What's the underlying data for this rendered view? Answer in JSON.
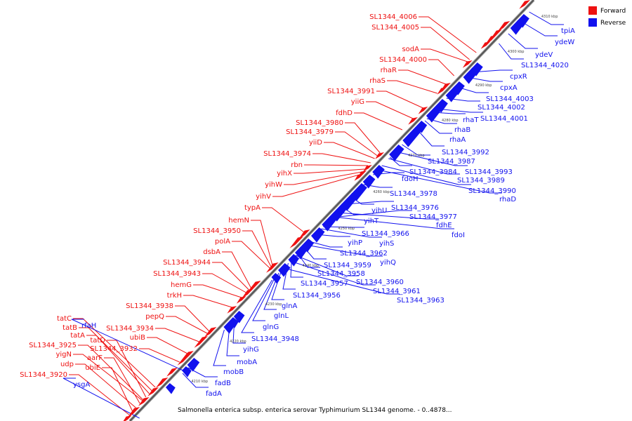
{
  "legend": {
    "forward": {
      "label": "Forward",
      "color": "#ee1111"
    },
    "reverse": {
      "label": "Reverse",
      "color": "#1111ee"
    }
  },
  "caption": "Salmonella enterica subsp. enterica serovar Typhimurium SL1344 genome. - 0..4878...",
  "ticks": [
    "4210 kbp",
    "4220 kbp",
    "4230 kbp",
    "4240 kbp",
    "4250 kbp",
    "4260 kbp",
    "4270 kbp",
    "4280 kbp",
    "4290 kbp",
    "4300 kbp",
    "4310 kbp"
  ],
  "forward_labels": [
    "SL1344_4006",
    "SL1344_4005",
    "sodA",
    "SL1344_4000",
    "rhaR",
    "rhaS",
    "SL1344_3991",
    "yiiG",
    "fdhD",
    "SL1344_3980",
    "SL1344_3979",
    "yiiD",
    "SL1344_3974",
    "rbn",
    "yihX",
    "yihW",
    "yihV",
    "typA",
    "hemN",
    "SL1344_3950",
    "polA",
    "dsbA",
    "SL1344_3944",
    "SL1344_3943",
    "hemG",
    "trkH",
    "SL1344_3938",
    "pepQ",
    "SL1344_3934",
    "ubiB",
    "tatC",
    "tatB",
    "tatA",
    "tatD",
    "SL1344_3925",
    "SL1344_3932",
    "yigN",
    "aarF",
    "udp",
    "ubiE",
    "SL1344_3920"
  ],
  "reverse_labels": [
    "tpiA",
    "ydeW",
    "ydeV",
    "SL1344_4020",
    "cpxR",
    "cpxA",
    "SL1344_4003",
    "SL1344_4002",
    "SL1344_4001",
    "rhaT",
    "rhaB",
    "rhaA",
    "SL1344_3992",
    "SL1344_3987",
    "SL1344_3984",
    "SL1344_3993",
    "SL1344_3989",
    "SL1344_3990",
    "rhaD",
    "fdoH",
    "SL1344_3978",
    "yihU",
    "SL1344_3976",
    "SL1344_3977",
    "fdhE",
    "fdoI",
    "yihT",
    "SL1344_3966",
    "yihS",
    "yihP",
    "SL1344_3962",
    "yihQ",
    "SL1344_3959",
    "SL1344_3958",
    "SL1344_3960",
    "SL1344_3957",
    "SL1344_3961",
    "SL1344_3956",
    "SL1344_3963",
    "glnA",
    "glnL",
    "glnG",
    "SL1344_3948",
    "yihG",
    "mobA",
    "mobB",
    "fadB",
    "fadA",
    "rfaH",
    "ysgA"
  ]
}
